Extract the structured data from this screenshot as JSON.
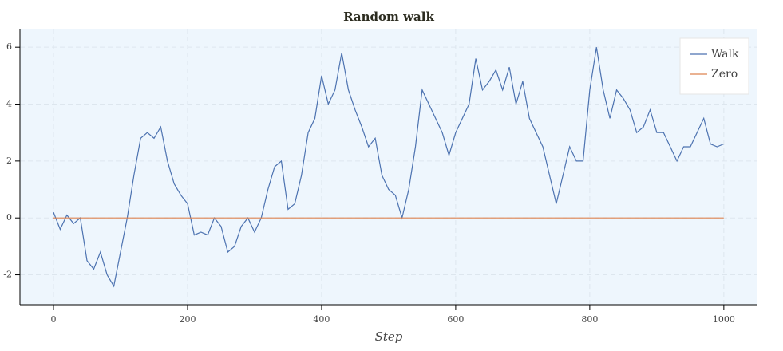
{
  "chart_data": {
    "type": "line",
    "title": "Random walk",
    "x_label": "Step",
    "series": [
      {
        "name": "Walk",
        "color": "#4c72b0",
        "x": [
          0,
          10,
          20,
          30,
          40,
          50,
          60,
          70,
          80,
          90,
          100,
          110,
          120,
          130,
          140,
          150,
          160,
          170,
          180,
          190,
          200,
          210,
          220,
          230,
          240,
          250,
          260,
          270,
          280,
          290,
          300,
          310,
          320,
          330,
          340,
          350,
          360,
          370,
          380,
          390,
          400,
          410,
          420,
          430,
          440,
          450,
          460,
          470,
          480,
          490,
          500,
          510,
          520,
          530,
          540,
          550,
          560,
          570,
          580,
          590,
          600,
          610,
          620,
          630,
          640,
          650,
          660,
          670,
          680,
          690,
          700,
          710,
          720,
          730,
          740,
          750,
          760,
          770,
          780,
          790,
          800,
          810,
          820,
          830,
          840,
          850,
          860,
          870,
          880,
          890,
          900,
          910,
          920,
          930,
          940,
          950,
          960,
          970,
          980,
          990,
          1000
        ],
        "values": [
          0.2,
          -0.4,
          0.1,
          -0.2,
          0.0,
          -1.5,
          -1.8,
          -1.2,
          -2.0,
          -2.4,
          -1.2,
          0.0,
          1.5,
          2.8,
          3.0,
          2.8,
          3.2,
          2.0,
          1.2,
          0.8,
          0.5,
          -0.6,
          -0.5,
          -0.6,
          0.0,
          -0.3,
          -1.2,
          -1.0,
          -0.3,
          0.0,
          -0.5,
          0.0,
          1.0,
          1.8,
          2.0,
          0.3,
          0.5,
          1.5,
          3.0,
          3.5,
          5.0,
          4.0,
          4.5,
          5.8,
          4.5,
          3.8,
          3.2,
          2.5,
          2.8,
          1.5,
          1.0,
          0.8,
          0.0,
          1.0,
          2.5,
          4.5,
          4.0,
          3.5,
          3.0,
          2.2,
          3.0,
          3.5,
          4.0,
          5.6,
          4.5,
          4.8,
          5.2,
          4.5,
          5.3,
          4.0,
          4.8,
          3.5,
          3.0,
          2.5,
          1.5,
          0.5,
          1.5,
          2.5,
          2.0,
          2.0,
          4.5,
          6.0,
          4.5,
          3.5,
          4.5,
          4.2,
          3.8,
          3.0,
          3.2,
          3.8,
          3.0,
          3.0,
          2.5,
          2.0,
          2.5,
          2.5,
          3.0,
          3.5,
          2.6,
          2.5,
          2.6
        ]
      },
      {
        "name": "Zero",
        "color": "#dd8452",
        "x": [
          0,
          1000
        ],
        "values": [
          0,
          0
        ]
      }
    ],
    "xlim": [
      -50,
      1049
    ],
    "xticks": [
      0,
      200,
      400,
      600,
      800,
      1000
    ],
    "ylim": [
      -3.05,
      6.65
    ],
    "yticks": [
      -2,
      0,
      2,
      4,
      6
    ],
    "grid": true,
    "legend": "top-right"
  }
}
